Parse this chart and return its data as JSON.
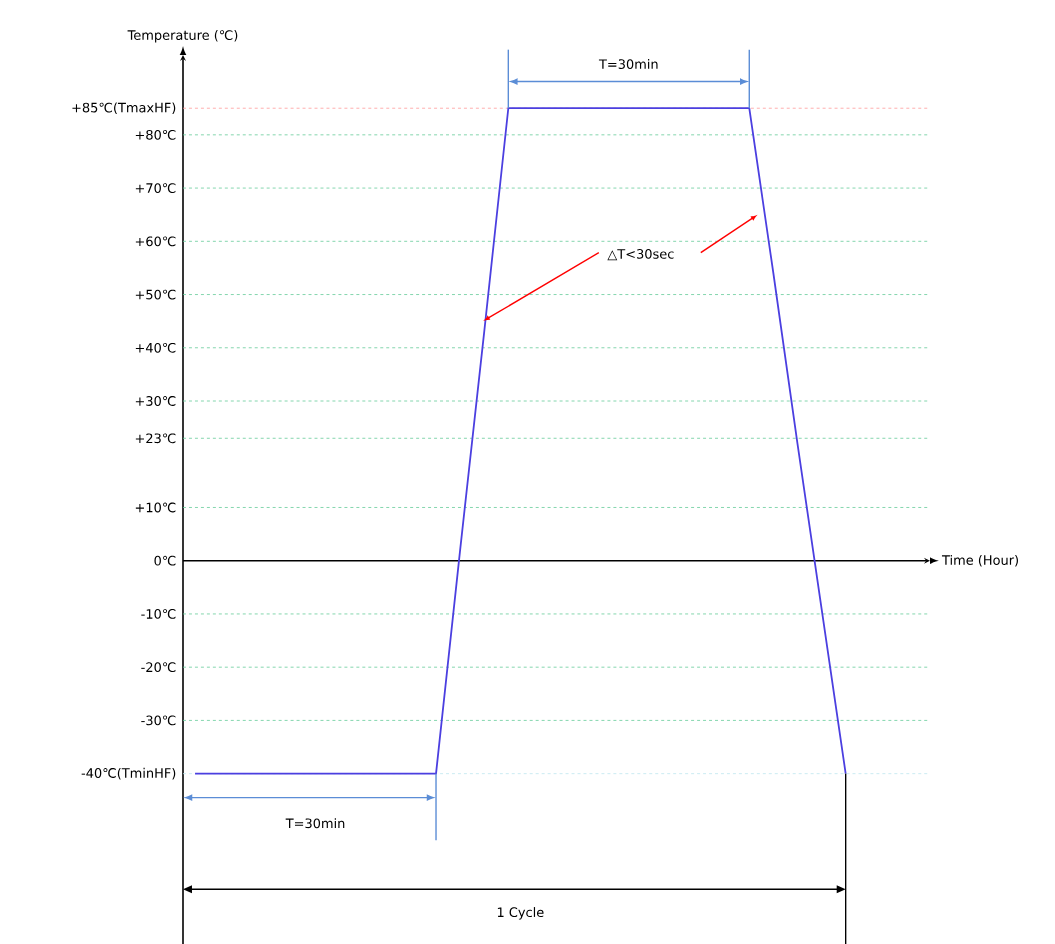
{
  "chart_data": {
    "type": "line",
    "xlabel": "Time (Hour)",
    "ylabel": "Temperature (℃)",
    "categories": [
      null,
      null,
      null,
      null,
      null,
      null,
      null,
      null,
      null,
      null,
      null,
      null,
      null,
      null,
      null,
      null,
      null,
      null,
      null,
      null,
      null,
      null,
      null,
      null,
      null,
      null,
      null,
      null,
      null,
      null,
      null
    ],
    "series": [
      {
        "color": "#4b3fe0",
        "values": [
          -40,
          -40,
          -40,
          -40,
          -40,
          -40,
          -40,
          -40,
          -40,
          -40,
          -40,
          2,
          43,
          85,
          85,
          85,
          85,
          85,
          85,
          85,
          85,
          85,
          85,
          85,
          54,
          22,
          -9,
          -40,
          null,
          null,
          null
        ]
      }
    ],
    "ylim": [
      -72,
      95
    ],
    "yticks": [
      {
        "value": 85,
        "label": "+85℃(TmaxHF)"
      },
      {
        "value": 80,
        "label": "+80℃"
      },
      {
        "value": 70,
        "label": "+70℃"
      },
      {
        "value": 60,
        "label": "+60℃"
      },
      {
        "value": 50,
        "label": "+50℃"
      },
      {
        "value": 40,
        "label": "+40℃"
      },
      {
        "value": 30,
        "label": "+30℃"
      },
      {
        "value": 23,
        "label": "+23℃"
      },
      {
        "value": 10,
        "label": "+10℃"
      },
      {
        "value": 0,
        "label": "0℃"
      },
      {
        "value": -10,
        "label": "-10℃"
      },
      {
        "value": -20,
        "label": "-20℃"
      },
      {
        "value": -30,
        "label": "-30℃"
      },
      {
        "value": -40,
        "label": "-40℃(TminHF)"
      }
    ],
    "tick_labels": "y",
    "ref_lines": [
      {
        "axis": "y",
        "value": 85,
        "color": "#ff9999",
        "line_style": "dashed"
      },
      {
        "axis": "y",
        "value": 80,
        "color": "#66cc99",
        "line_style": "dashed"
      },
      {
        "axis": "y",
        "value": 70,
        "color": "#66cc99",
        "line_style": "dashed"
      },
      {
        "axis": "y",
        "value": 60,
        "color": "#66cc99",
        "line_style": "dashed"
      },
      {
        "axis": "y",
        "value": 50,
        "color": "#66cc99",
        "line_style": "dashed"
      },
      {
        "axis": "y",
        "value": 40,
        "color": "#66cc99",
        "line_style": "dashed"
      },
      {
        "axis": "y",
        "value": 30,
        "color": "#66cc99",
        "line_style": "dashed"
      },
      {
        "axis": "y",
        "value": 23,
        "color": "#66cc99",
        "line_style": "dashed"
      },
      {
        "axis": "y",
        "value": 10,
        "color": "#66cc99",
        "line_style": "dashed"
      },
      {
        "axis": "y",
        "value": -10,
        "color": "#66cc99",
        "line_style": "dashed"
      },
      {
        "axis": "y",
        "value": -20,
        "color": "#66cc99",
        "line_style": "dashed"
      },
      {
        "axis": "y",
        "value": -30,
        "color": "#66cc99",
        "line_style": "dashed"
      },
      {
        "axis": "y",
        "value": -40,
        "color": "#bfe6ef",
        "line_style": "dashed"
      }
    ],
    "annotations": [
      "T=30min",
      "T=30min",
      "△T<30sec",
      "1 Cycle"
    ]
  }
}
